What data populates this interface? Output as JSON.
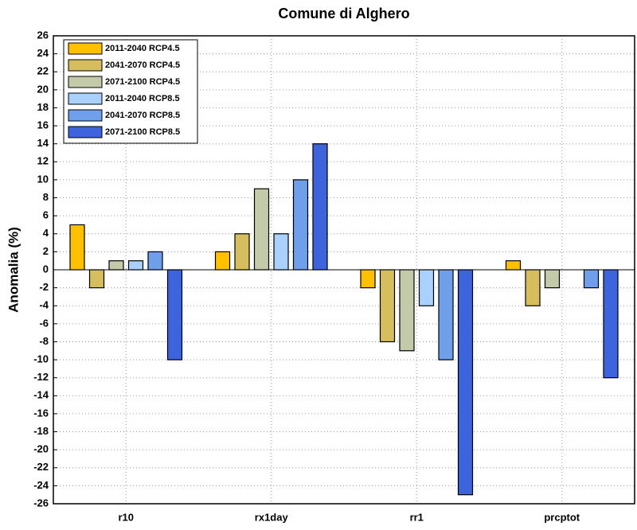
{
  "chart_data": {
    "type": "bar",
    "title": "Comune di Alghero",
    "y_label": "Anomalia (%)",
    "categories": [
      "r10",
      "rx1day",
      "rr1",
      "prcptot"
    ],
    "series": [
      {
        "name": "2011-2040 RCP4.5",
        "color": "#ffc000",
        "values": [
          5,
          2,
          -2,
          1
        ]
      },
      {
        "name": "2041-2070 RCP4.5",
        "color": "#d6bd5e",
        "values": [
          -2,
          4,
          -8,
          -4
        ]
      },
      {
        "name": "2071-2100 RCP4.5",
        "color": "#c3caa9",
        "values": [
          1,
          9,
          -9,
          -2
        ]
      },
      {
        "name": "2011-2040 RCP8.5",
        "color": "#a9d1fb",
        "values": [
          1,
          4,
          -4,
          0
        ]
      },
      {
        "name": "2041-2070 RCP8.5",
        "color": "#6f9fea",
        "values": [
          2,
          10,
          -10,
          -2
        ]
      },
      {
        "name": "2071-2100 RCP8.5",
        "color": "#3d63dd",
        "values": [
          -10,
          14,
          -25,
          -12
        ]
      }
    ],
    "ylim": [
      -26,
      26
    ],
    "yticks": [
      -26,
      -24,
      -22,
      -20,
      -18,
      -16,
      -14,
      -12,
      -10,
      -8,
      -6,
      -4,
      -2,
      0,
      2,
      4,
      6,
      8,
      10,
      12,
      14,
      16,
      18,
      20,
      22,
      24,
      26
    ],
    "grid": true,
    "legend": "upper left"
  }
}
